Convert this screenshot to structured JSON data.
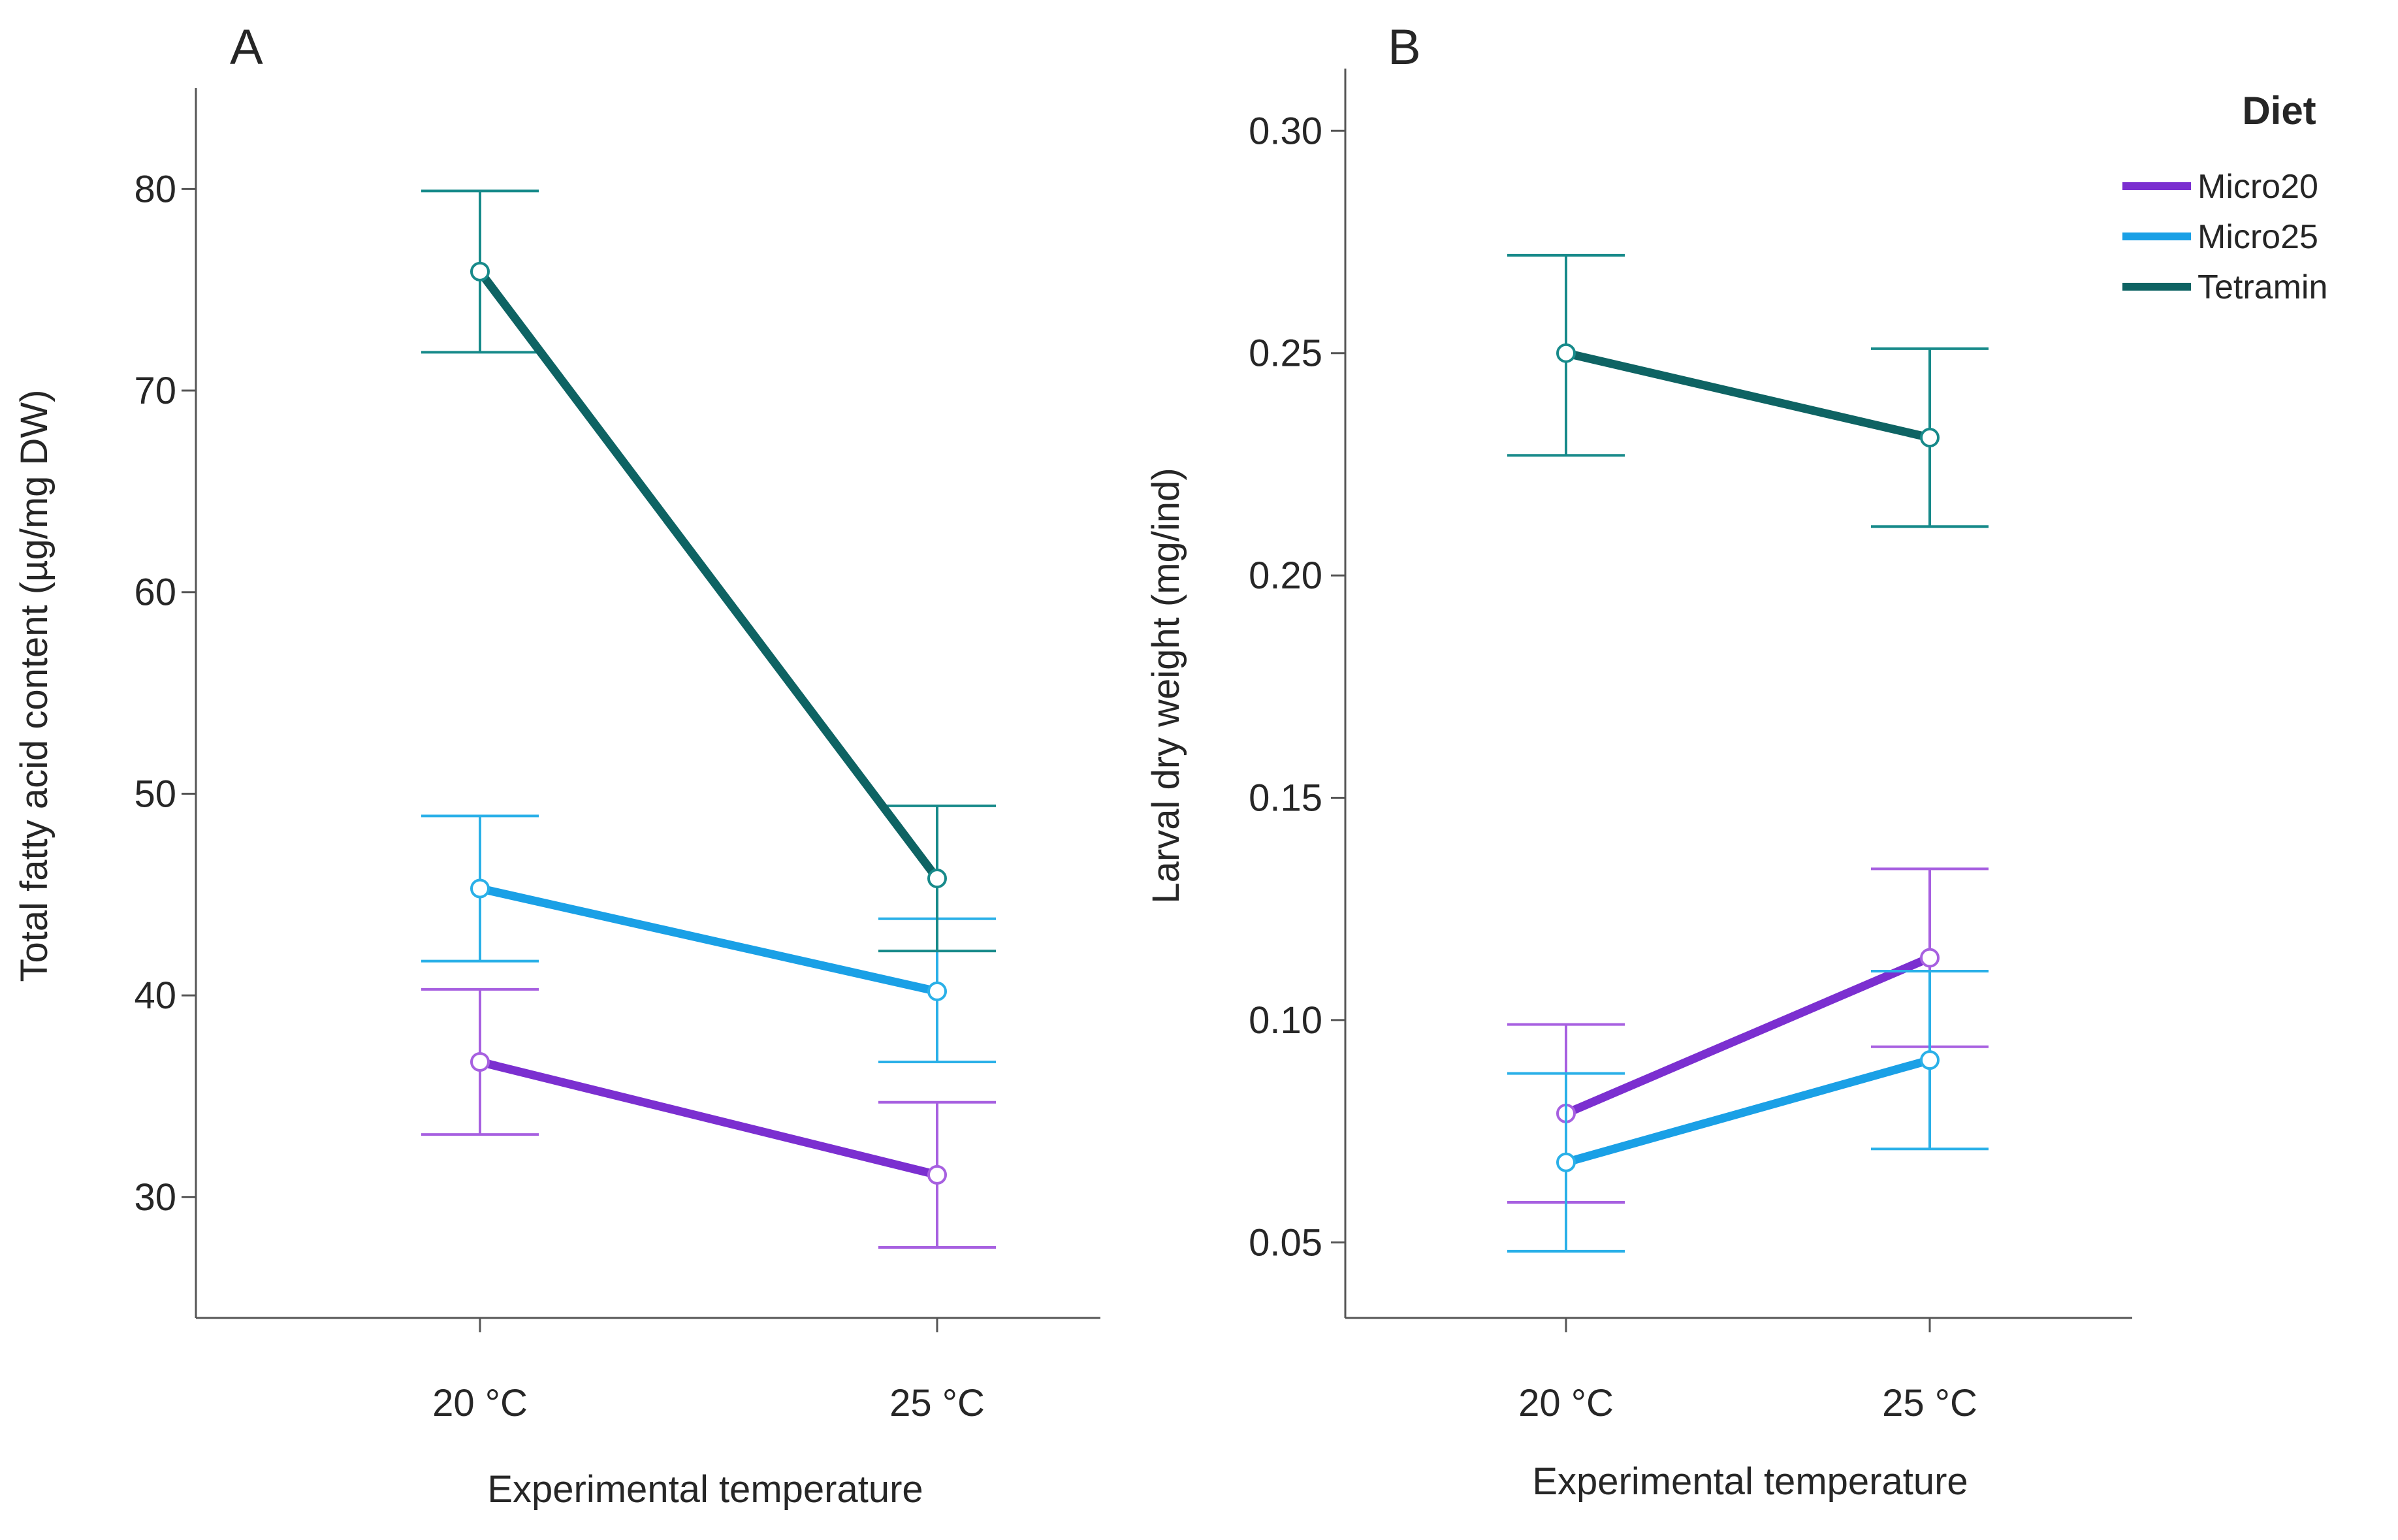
{
  "legend": {
    "title": "Diet",
    "entries": [
      "Micro20",
      "Micro25",
      "Tetramin"
    ]
  },
  "colors": {
    "Micro20": "#7b2fd0",
    "Micro25": "#1aa0e6",
    "Tetramin": "#0e6363",
    "Micro20_errorbar": "#a760e0",
    "Micro25_errorbar": "#2ab0e8",
    "Tetramin_errorbar": "#178a8a",
    "axis": "#555555"
  },
  "chart_data": [
    {
      "panel": "A",
      "type": "line",
      "xlabel": "Experimental temperature",
      "ylabel": "Total fatty acid content (µg/mg DW)",
      "categories": [
        "20 °C",
        "25 °C"
      ],
      "ylim": [
        24,
        85
      ],
      "yticks": [
        30,
        40,
        50,
        60,
        70,
        80
      ],
      "ytick_labels": [
        "30",
        "40",
        "50",
        "60",
        "70",
        "80"
      ],
      "series": [
        {
          "name": "Micro20",
          "values": [
            36.7,
            31.1
          ],
          "err_low": [
            33.1,
            27.5
          ],
          "err_high": [
            40.3,
            34.7
          ]
        },
        {
          "name": "Micro25",
          "values": [
            45.3,
            40.2
          ],
          "err_low": [
            41.7,
            36.7
          ],
          "err_high": [
            48.9,
            43.8
          ]
        },
        {
          "name": "Tetramin",
          "values": [
            75.9,
            45.8
          ],
          "err_low": [
            71.9,
            42.2
          ],
          "err_high": [
            79.9,
            49.4
          ]
        }
      ]
    },
    {
      "panel": "B",
      "type": "line",
      "xlabel": "Experimental  temperature",
      "ylabel": "Larval dry weight (mg/ind)",
      "categories": [
        "20 °C",
        "25 °C"
      ],
      "ylim": [
        0.033,
        0.314
      ],
      "yticks": [
        0.05,
        0.1,
        0.15,
        0.2,
        0.25,
        0.3
      ],
      "ytick_labels": [
        "0.05",
        "0.10",
        "0.15",
        "0.20",
        "0.25",
        "0.30"
      ],
      "series": [
        {
          "name": "Micro20",
          "values": [
            0.079,
            0.114
          ],
          "err_low": [
            0.059,
            0.094
          ],
          "err_high": [
            0.099,
            0.134
          ]
        },
        {
          "name": "Micro25",
          "values": [
            0.068,
            0.091
          ],
          "err_low": [
            0.048,
            0.071
          ],
          "err_high": [
            0.088,
            0.111
          ]
        },
        {
          "name": "Tetramin",
          "values": [
            0.25,
            0.231
          ],
          "err_low": [
            0.227,
            0.211
          ],
          "err_high": [
            0.272,
            0.251
          ]
        }
      ]
    }
  ]
}
